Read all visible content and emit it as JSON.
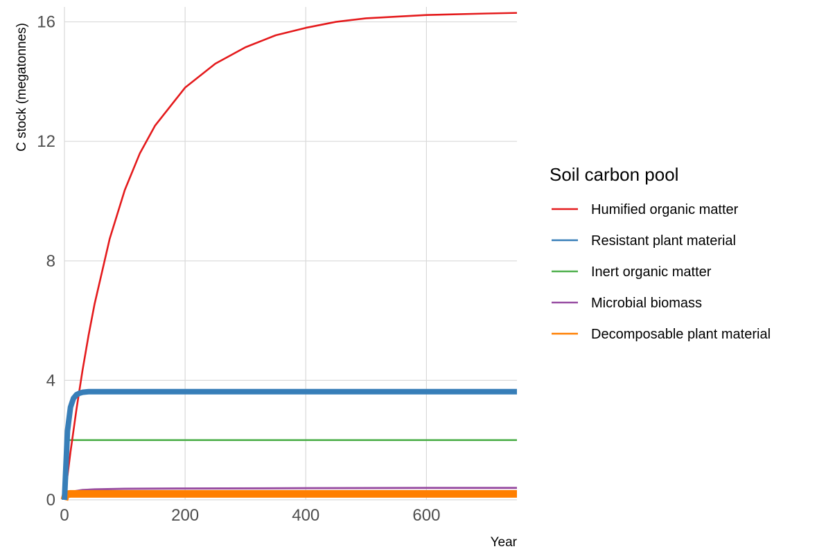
{
  "chart_data": {
    "type": "line",
    "xlabel": "Year",
    "ylabel": "C stock (megatonnes)",
    "xlim": [
      0,
      750
    ],
    "ylim": [
      0,
      16.5
    ],
    "x_ticks": [
      0,
      200,
      400,
      600
    ],
    "y_ticks": [
      0,
      4,
      8,
      12,
      16
    ],
    "grid": true,
    "legend": {
      "title": "Soil carbon pool",
      "position": "right"
    },
    "series": [
      {
        "name": "Humified organic matter",
        "color": "#e41a1c",
        "x": [
          0,
          10,
          20,
          30,
          40,
          50,
          75,
          100,
          125,
          150,
          200,
          250,
          300,
          350,
          400,
          450,
          500,
          600,
          700,
          750
        ],
        "y": [
          0,
          1.6,
          3.04,
          4.34,
          5.51,
          6.56,
          8.74,
          10.37,
          11.6,
          12.52,
          13.8,
          14.6,
          15.15,
          15.55,
          15.8,
          16.0,
          16.12,
          16.23,
          16.28,
          16.3
        ]
      },
      {
        "name": "Resistant plant material",
        "color": "#377eb8",
        "x": [
          0,
          5,
          10,
          15,
          20,
          25,
          30,
          40,
          50,
          100,
          200,
          400,
          600,
          750
        ],
        "y": [
          0,
          2.3,
          3.1,
          3.4,
          3.52,
          3.57,
          3.6,
          3.62,
          3.62,
          3.62,
          3.62,
          3.62,
          3.62,
          3.62
        ]
      },
      {
        "name": "Inert organic matter",
        "color": "#4daf4a",
        "x": [
          0,
          750
        ],
        "y": [
          2.0,
          2.0
        ]
      },
      {
        "name": "Microbial biomass",
        "color": "#984ea3",
        "x": [
          0,
          10,
          20,
          30,
          50,
          100,
          200,
          400,
          600,
          750
        ],
        "y": [
          0.15,
          0.25,
          0.3,
          0.33,
          0.35,
          0.37,
          0.38,
          0.39,
          0.4,
          0.4
        ]
      },
      {
        "name": "Decomposable plant material",
        "color": "#ff7f00",
        "x": [
          0,
          2,
          5,
          10,
          750
        ],
        "y": [
          0,
          0.15,
          0.19,
          0.2,
          0.2
        ]
      }
    ]
  }
}
